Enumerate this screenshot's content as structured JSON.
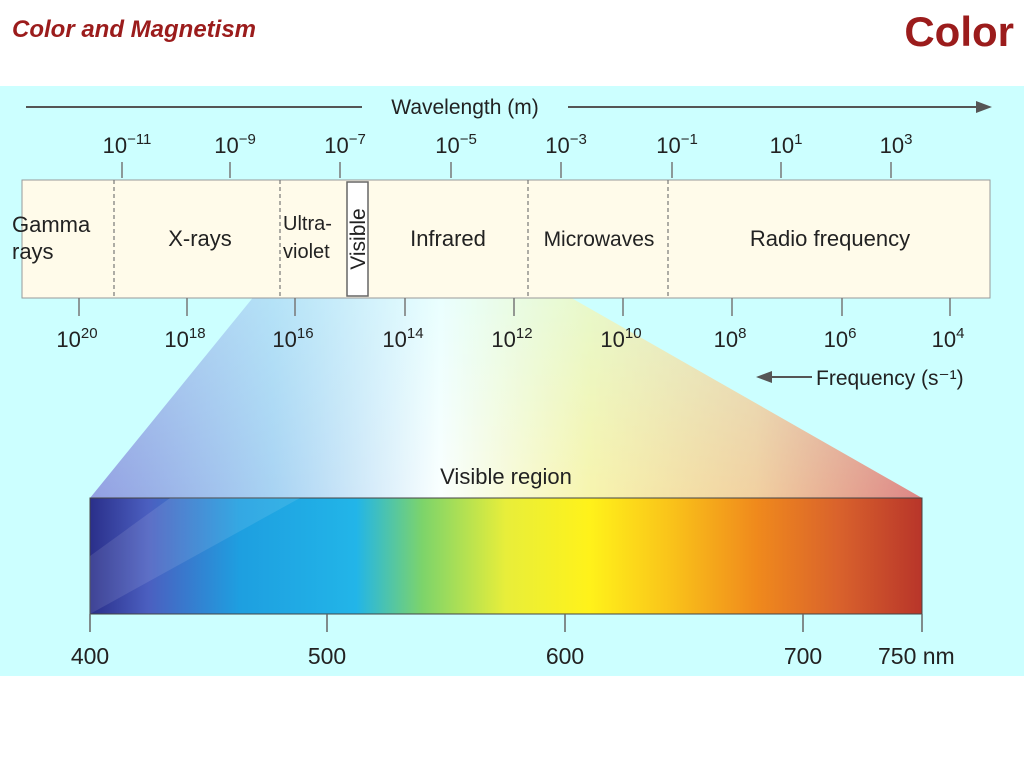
{
  "header": {
    "title": "Color and Magnetism",
    "topic": "Color"
  },
  "spectrum": {
    "wavelength_label": "Wavelength (m)",
    "frequency_label": "Frequency (s⁻¹)",
    "wavelength_ticks": [
      {
        "base": "10",
        "exp": "−11"
      },
      {
        "base": "10",
        "exp": "−9"
      },
      {
        "base": "10",
        "exp": "−7"
      },
      {
        "base": "10",
        "exp": "−5"
      },
      {
        "base": "10",
        "exp": "−3"
      },
      {
        "base": "10",
        "exp": "−1"
      },
      {
        "base": "10",
        "exp": "1"
      },
      {
        "base": "10",
        "exp": "3"
      }
    ],
    "frequency_ticks": [
      {
        "base": "10",
        "exp": "20"
      },
      {
        "base": "10",
        "exp": "18"
      },
      {
        "base": "10",
        "exp": "16"
      },
      {
        "base": "10",
        "exp": "14"
      },
      {
        "base": "10",
        "exp": "12"
      },
      {
        "base": "10",
        "exp": "10"
      },
      {
        "base": "10",
        "exp": "8"
      },
      {
        "base": "10",
        "exp": "6"
      },
      {
        "base": "10",
        "exp": "4"
      }
    ],
    "regions": {
      "gamma_line1": "Gamma",
      "gamma_line2": "rays",
      "xrays": "X-rays",
      "uv_line1": "Ultra-",
      "uv_line2": "violet",
      "visible": "Visible",
      "infrared": "Infrared",
      "microwaves": "Microwaves",
      "radio": "Radio frequency"
    },
    "visible_region_label": "Visible region",
    "nm_ticks": [
      "400",
      "500",
      "600",
      "700",
      "750 nm"
    ]
  },
  "colors": {
    "title": "#9b1c1c",
    "background": "#ccffff",
    "band": "#fffbea"
  }
}
